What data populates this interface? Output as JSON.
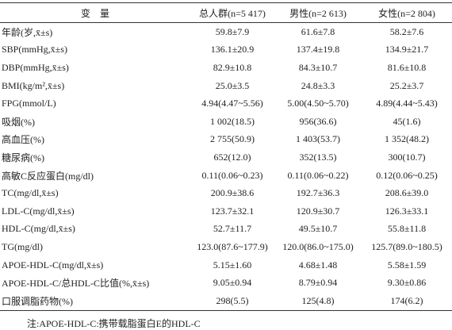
{
  "table": {
    "header": [
      "变　量",
      "总人群(n=5 417)",
      "男性(n=2 613)",
      "女性(n=2 804)"
    ],
    "rows": [
      [
        "年龄(岁,x̄±s)",
        "59.8±7.9",
        "61.6±7.8",
        "58.2±7.6"
      ],
      [
        "SBP(mmHg,x̄±s)",
        "136.1±20.9",
        "137.4±19.8",
        "134.9±21.7"
      ],
      [
        "DBP(mmHg,x̄±s)",
        "82.9±10.8",
        "84.3±10.7",
        "81.6±10.8"
      ],
      [
        "BMI(kg/m²,x̄±s)",
        "25.0±3.5",
        "24.8±3.3",
        "25.2±3.7"
      ],
      [
        "FPG(mmol/L)",
        "4.94(4.47~5.56)",
        "5.00(4.50~5.70)",
        "4.89(4.44~5.43)"
      ],
      [
        "吸烟(%)",
        "1 002(18.5)",
        "956(36.6)",
        "45(1.6)"
      ],
      [
        "高血压(%)",
        "2 755(50.9)",
        "1 403(53.7)",
        "1 352(48.2)"
      ],
      [
        "糖尿病(%)",
        "652(12.0)",
        "352(13.5)",
        "300(10.7)"
      ],
      [
        "高敏C反应蛋白(mg/dl)",
        "0.11(0.06~0.23)",
        "0.11(0.06~0.22)",
        "0.12(0.06~0.25)"
      ],
      [
        "TC(mg/dl,x̄±s)",
        "200.9±38.6",
        "192.7±36.3",
        "208.6±39.0"
      ],
      [
        "LDL-C(mg/dl,x̄±s)",
        "123.7±32.1",
        "120.9±30.7",
        "126.3±33.1"
      ],
      [
        "HDL-C(mg/dl,x̄±s)",
        "52.7±11.7",
        "49.5±10.7",
        "55.8±11.8"
      ],
      [
        "TG(mg/dl)",
        "123.0(87.6~177.9)",
        "120.0(86.0~175.0)",
        "125.7(89.0~180.5)"
      ],
      [
        "APOE-HDL-C(mg/dl,x̄±s)",
        "5.15±1.60",
        "4.68±1.48",
        "5.58±1.59"
      ],
      [
        "APOE-HDL-C/总HDL-C比值(%,x̄±s)",
        "9.05±0.94",
        "8.79±0.94",
        "9.30±0.86"
      ],
      [
        "口服调脂药物(%)",
        "298(5.5)",
        "125(4.8)",
        "174(6.2)"
      ]
    ]
  },
  "note": "注:APOE-HDL-C:携带载脂蛋白E的HDL-C"
}
